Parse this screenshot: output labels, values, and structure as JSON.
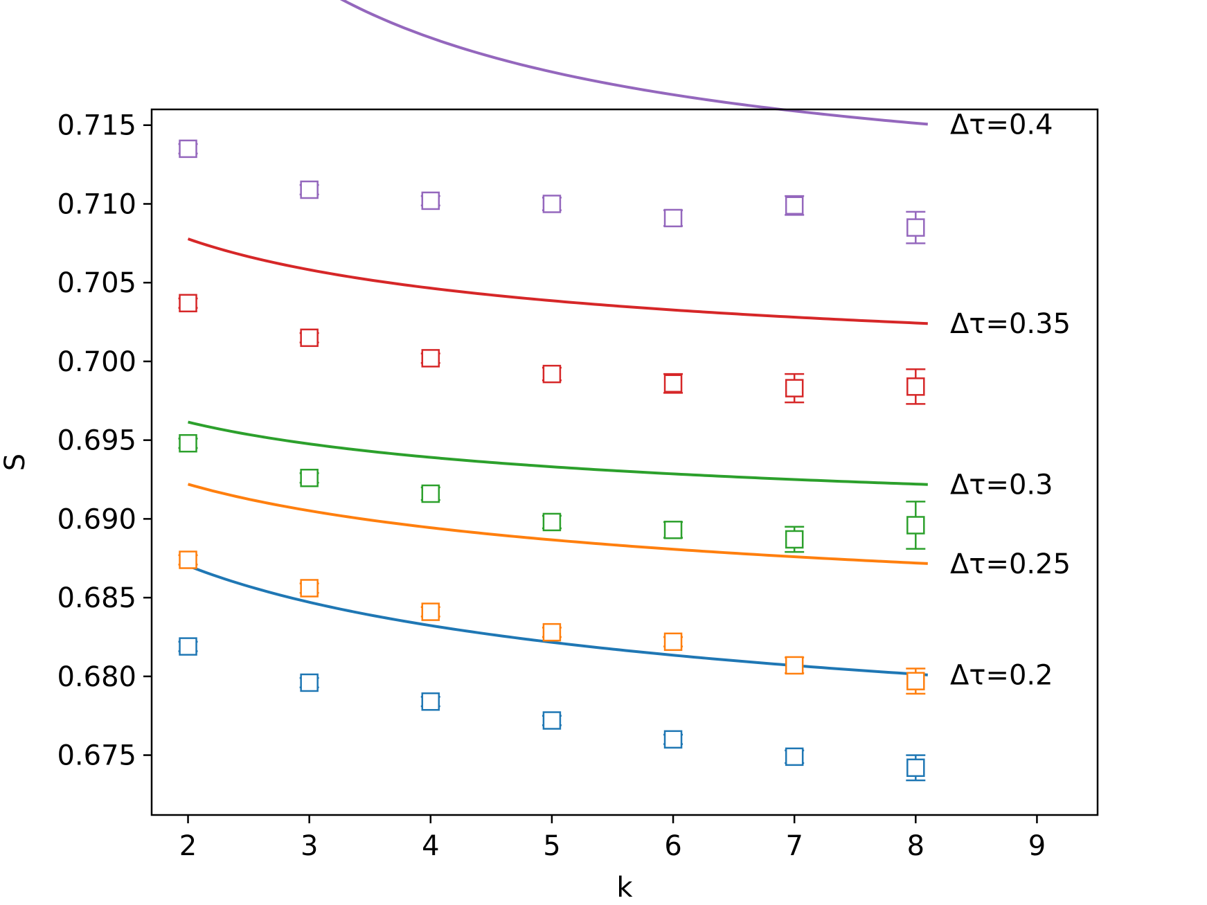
{
  "chart_data": {
    "type": "scatter",
    "title": "",
    "xlabel": "k",
    "ylabel": "S",
    "xlim": [
      1.7,
      9.5
    ],
    "ylim": [
      0.6712,
      0.716
    ],
    "xticks": [
      "2",
      "3",
      "4",
      "5",
      "6",
      "7",
      "8",
      "9"
    ],
    "yticks": [
      "0.675",
      "0.680",
      "0.685",
      "0.690",
      "0.695",
      "0.700",
      "0.705",
      "0.710",
      "0.715"
    ],
    "grid": false,
    "legend": "none",
    "marker": "open-square",
    "series": [
      {
        "name": "Δτ=0.2",
        "color": "#1f77b4",
        "points": [
          {
            "x": 2,
            "y": 0.6819,
            "err": 0.0003
          },
          {
            "x": 3,
            "y": 0.6796,
            "err": 0.0003
          },
          {
            "x": 4,
            "y": 0.6784,
            "err": 0.0003
          },
          {
            "x": 5,
            "y": 0.6772,
            "err": 0.0003
          },
          {
            "x": 6,
            "y": 0.676,
            "err": 0.0003
          },
          {
            "x": 7,
            "y": 0.6749,
            "err": 0.0004
          },
          {
            "x": 8,
            "y": 0.6742,
            "err": 0.0008
          }
        ],
        "fit": {
          "a": 0.6668,
          "b": 0.0249,
          "c": 0.3
        }
      },
      {
        "name": "Δτ=0.25",
        "color": "#ff7f0e",
        "points": [
          {
            "x": 2,
            "y": 0.6874,
            "err": 0.0003
          },
          {
            "x": 3,
            "y": 0.6856,
            "err": 0.0003
          },
          {
            "x": 4,
            "y": 0.6841,
            "err": 0.0003
          },
          {
            "x": 5,
            "y": 0.6828,
            "err": 0.0003
          },
          {
            "x": 6,
            "y": 0.6822,
            "err": 0.0003
          },
          {
            "x": 7,
            "y": 0.6807,
            "err": 0.0005
          },
          {
            "x": 8,
            "y": 0.6797,
            "err": 0.0008
          }
        ],
        "fit": {
          "a": 0.6775,
          "b": 0.0181,
          "c": 0.3
        }
      },
      {
        "name": "Δτ=0.3",
        "color": "#2ca02c",
        "points": [
          {
            "x": 2,
            "y": 0.6948,
            "err": 0.0003
          },
          {
            "x": 3,
            "y": 0.6926,
            "err": 0.0003
          },
          {
            "x": 4,
            "y": 0.6916,
            "err": 0.0004
          },
          {
            "x": 5,
            "y": 0.6898,
            "err": 0.0004
          },
          {
            "x": 6,
            "y": 0.6893,
            "err": 0.0005
          },
          {
            "x": 7,
            "y": 0.6887,
            "err": 0.0008
          },
          {
            "x": 8,
            "y": 0.6896,
            "err": 0.0015
          }
        ],
        "fit": {
          "a": 0.6869,
          "b": 0.0122,
          "c": 0.4
        }
      },
      {
        "name": "Δτ=0.35",
        "color": "#d62728",
        "points": [
          {
            "x": 2,
            "y": 0.7037,
            "err": 0.0003
          },
          {
            "x": 3,
            "y": 0.7015,
            "err": 0.0003
          },
          {
            "x": 4,
            "y": 0.7002,
            "err": 0.0003
          },
          {
            "x": 5,
            "y": 0.6992,
            "err": 0.0004
          },
          {
            "x": 6,
            "y": 0.6986,
            "err": 0.0006
          },
          {
            "x": 7,
            "y": 0.6983,
            "err": 0.0009
          },
          {
            "x": 8,
            "y": 0.6984,
            "err": 0.0011
          }
        ],
        "fit": {
          "a": 0.6971,
          "b": 0.0151,
          "c": 0.5
        }
      },
      {
        "name": "Δτ=0.4",
        "color": "#9467bd",
        "points": [
          {
            "x": 2,
            "y": 0.7135,
            "err": 0.0003
          },
          {
            "x": 3,
            "y": 0.7109,
            "err": 0.0003
          },
          {
            "x": 4,
            "y": 0.7102,
            "err": 0.0003
          },
          {
            "x": 5,
            "y": 0.71,
            "err": 0.0004
          },
          {
            "x": 6,
            "y": 0.7091,
            "err": 0.0005
          },
          {
            "x": 7,
            "y": 0.7099,
            "err": 0.0006
          },
          {
            "x": 8,
            "y": 0.7085,
            "err": 0.001
          }
        ],
        "fit": {
          "a": 0.7097,
          "b": 0.0434,
          "c": 1.0
        }
      }
    ]
  }
}
